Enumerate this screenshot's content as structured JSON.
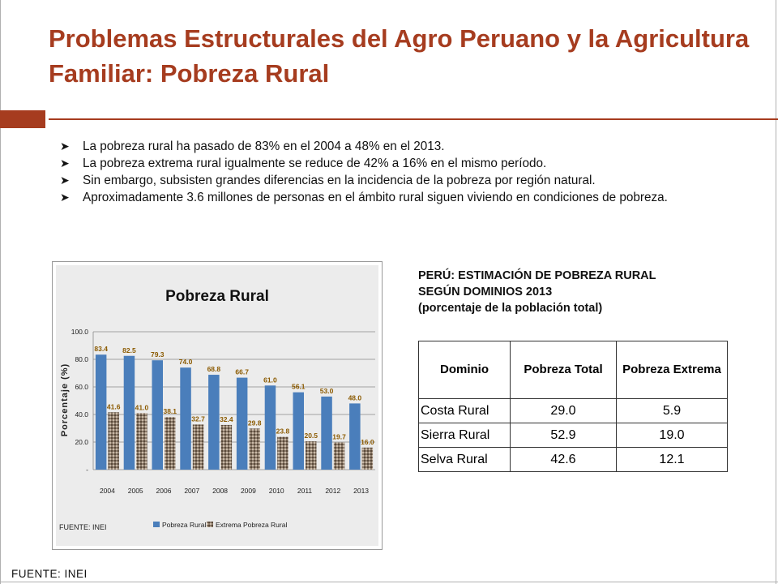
{
  "slide": {
    "title": "Problemas Estructurales del Agro Peruano y la Agricultura Familiar: Pobreza Rural",
    "accent_color": "#a63c1f",
    "bullet_icon": "arrowhead-bullet-icon",
    "bullets": [
      "La pobreza rural ha pasado de 83% en el 2004 a 48% en el 2013.",
      "La pobreza extrema rural igualmente se reduce de 42% a 16% en el mismo período.",
      "Sin embargo, subsisten grandes diferencias en la incidencia de la pobreza por región natural.",
      "Aproximadamente 3.6 millones de personas en el ámbito rural siguen viviendo en condiciones de pobreza."
    ],
    "source_footer": "FUENTE: INEI"
  },
  "table": {
    "caption_lines": [
      "PERÚ: ESTIMACIÓN DE POBREZA RURAL",
      "SEGÚN DOMINIOS 2013",
      "(porcentaje de la población total)"
    ],
    "headers": [
      "Dominio",
      "Pobreza Total",
      "Pobreza Extrema"
    ],
    "rows": [
      [
        "Costa Rural",
        "29.0",
        "5.9"
      ],
      [
        "Sierra Rural",
        "52.9",
        "19.0"
      ],
      [
        "Selva Rural",
        "42.6",
        "12.1"
      ]
    ]
  },
  "chart_data": {
    "type": "bar",
    "title": "Pobreza Rural",
    "xlabel": "",
    "ylabel": "Porcentaje (%)",
    "ylim": [
      0,
      100
    ],
    "yticks": [
      "100.0",
      "80.0",
      "60.0",
      "40.0",
      "20.0",
      "-"
    ],
    "ytick_values": [
      100,
      80,
      60,
      40,
      20,
      0
    ],
    "categories": [
      "2004",
      "2005",
      "2006",
      "2007",
      "2008",
      "2009",
      "2010",
      "2011",
      "2012",
      "2013"
    ],
    "series": [
      {
        "name": "Pobreza Rural",
        "color": "#4a7ebb",
        "values": [
          83.4,
          82.5,
          79.3,
          74.0,
          68.8,
          66.7,
          61.0,
          56.1,
          53.0,
          48.0
        ],
        "labels": [
          "83.4",
          "82.5",
          "79.3",
          "74.0",
          "68.8",
          "66.7",
          "61.0",
          "56.1",
          "53.0",
          "48.0"
        ]
      },
      {
        "name": "Extrema Pobreza Rural",
        "color": "#8c7b6b",
        "values": [
          41.6,
          41.0,
          38.1,
          32.7,
          32.4,
          29.8,
          23.8,
          20.5,
          19.7,
          16.0
        ],
        "labels": [
          "41.6",
          "41.0",
          "38.1",
          "32.7",
          "32.4",
          "29.8",
          "23.8",
          "20.5",
          "19.7",
          "16.0"
        ]
      }
    ],
    "legend_position": "bottom",
    "source": "FUENTE: INEI",
    "label_color": "#8b5a00",
    "grid": true
  }
}
